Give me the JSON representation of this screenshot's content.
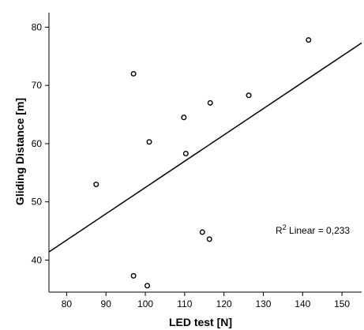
{
  "chart_data": {
    "type": "scatter",
    "xlabel": "LED test [N]",
    "ylabel": "Gliding Distance [m]",
    "xlim": [
      75.5,
      155
    ],
    "ylim": [
      34.5,
      82.5
    ],
    "x_ticks": [
      80,
      90,
      100,
      110,
      120,
      130,
      140,
      150
    ],
    "y_ticks": [
      40,
      50,
      60,
      70,
      80
    ],
    "grid": false,
    "points": [
      {
        "x": 87.5,
        "y": 53.0
      },
      {
        "x": 97.0,
        "y": 72.0
      },
      {
        "x": 101.0,
        "y": 60.3
      },
      {
        "x": 97.0,
        "y": 37.3
      },
      {
        "x": 100.5,
        "y": 35.6
      },
      {
        "x": 109.8,
        "y": 64.5
      },
      {
        "x": 110.3,
        "y": 58.3
      },
      {
        "x": 116.5,
        "y": 67.0
      },
      {
        "x": 114.5,
        "y": 44.8
      },
      {
        "x": 116.3,
        "y": 43.6
      },
      {
        "x": 126.3,
        "y": 68.3
      },
      {
        "x": 141.5,
        "y": 77.8
      }
    ],
    "fit_line": {
      "type": "linear",
      "x": [
        75.5,
        155
      ],
      "y": [
        41.4,
        77.3
      ]
    },
    "annotation": {
      "prefix": "R",
      "superscript": "2",
      "suffix": " Linear = 0,233"
    }
  }
}
